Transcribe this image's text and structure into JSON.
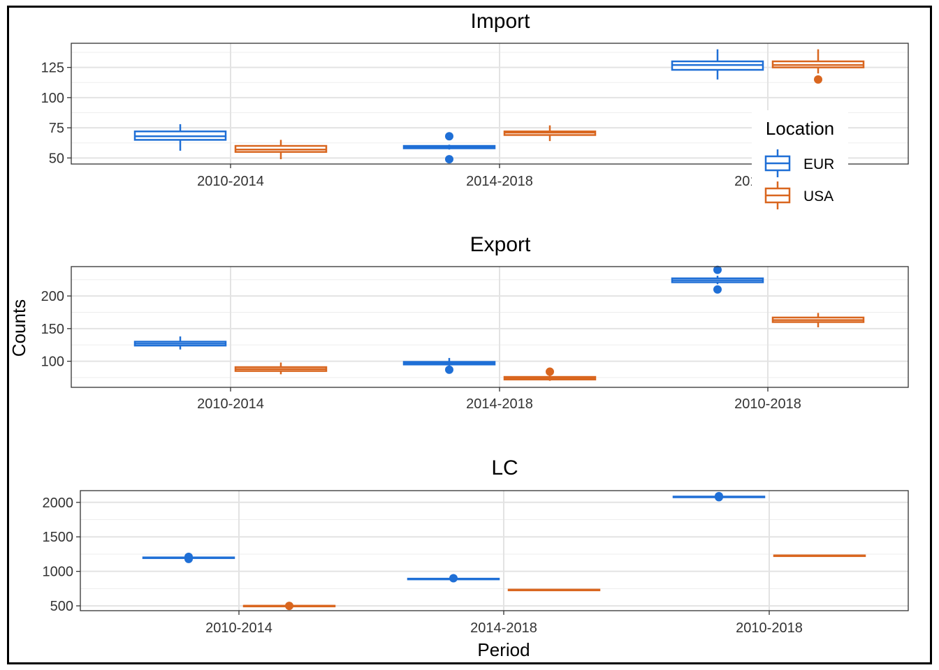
{
  "chart_data": {
    "type": "box",
    "ylabel": "Counts",
    "xlabel": "Period",
    "legend": {
      "title": "Location",
      "placement": "right",
      "entries": [
        {
          "name": "EUR",
          "color": "#1f6fd6"
        },
        {
          "name": "USA",
          "color": "#d9661f"
        }
      ]
    },
    "grid": true,
    "categories": [
      "2010-2014",
      "2014-2018",
      "2010-2018"
    ],
    "panels": [
      {
        "title": "Import",
        "ylim": [
          45,
          145
        ],
        "yticks": [
          50,
          75,
          100,
          125
        ],
        "series": [
          {
            "name": "EUR",
            "color": "#1f6fd6",
            "boxes": [
              {
                "min": 56,
                "q1": 65,
                "median": 68,
                "q3": 72,
                "max": 78,
                "outliers": []
              },
              {
                "min": 57,
                "q1": 58,
                "median": 59,
                "q3": 60,
                "max": 61,
                "outliers": [
                  68,
                  49
                ]
              },
              {
                "min": 115,
                "q1": 123,
                "median": 127,
                "q3": 130,
                "max": 140,
                "outliers": []
              }
            ]
          },
          {
            "name": "USA",
            "color": "#d9661f",
            "boxes": [
              {
                "min": 49,
                "q1": 55,
                "median": 57,
                "q3": 60,
                "max": 65,
                "outliers": []
              },
              {
                "min": 64,
                "q1": 69,
                "median": 71,
                "q3": 72,
                "max": 77,
                "outliers": []
              },
              {
                "min": 120,
                "q1": 125,
                "median": 127,
                "q3": 130,
                "max": 140,
                "outliers": [
                  115
                ]
              }
            ]
          }
        ]
      },
      {
        "title": "Export",
        "ylim": [
          60,
          245
        ],
        "yticks": [
          100,
          150,
          200
        ],
        "series": [
          {
            "name": "EUR",
            "color": "#1f6fd6",
            "boxes": [
              {
                "min": 118,
                "q1": 124,
                "median": 127,
                "q3": 130,
                "max": 138,
                "outliers": []
              },
              {
                "min": 93,
                "q1": 95,
                "median": 97,
                "q3": 99,
                "max": 105,
                "outliers": [
                  87
                ]
              },
              {
                "min": 218,
                "q1": 221,
                "median": 224,
                "q3": 227,
                "max": 231,
                "outliers": [
                  240,
                  210
                ]
              }
            ]
          },
          {
            "name": "USA",
            "color": "#d9661f",
            "boxes": [
              {
                "min": 80,
                "q1": 85,
                "median": 88,
                "q3": 91,
                "max": 98,
                "outliers": []
              },
              {
                "min": 70,
                "q1": 72,
                "median": 74,
                "q3": 76,
                "max": 78,
                "outliers": [
                  84
                ]
              },
              {
                "min": 152,
                "q1": 160,
                "median": 163,
                "q3": 167,
                "max": 174,
                "outliers": []
              }
            ]
          }
        ]
      },
      {
        "title": "LC",
        "ylim": [
          430,
          2170
        ],
        "yticks": [
          500,
          1000,
          1500,
          2000
        ],
        "series": [
          {
            "name": "EUR",
            "color": "#1f6fd6",
            "boxes": [
              {
                "min": 1195,
                "q1": 1198,
                "median": 1200,
                "q3": 1202,
                "max": 1205,
                "outliers": [
                  1210,
                  1180
                ]
              },
              {
                "min": 888,
                "q1": 890,
                "median": 892,
                "q3": 894,
                "max": 896,
                "outliers": [
                  900
                ]
              },
              {
                "min": 2078,
                "q1": 2080,
                "median": 2082,
                "q3": 2084,
                "max": 2086,
                "outliers": [
                  2090,
                  2075
                ]
              }
            ]
          },
          {
            "name": "USA",
            "color": "#d9661f",
            "boxes": [
              {
                "min": 496,
                "q1": 498,
                "median": 500,
                "q3": 502,
                "max": 504,
                "outliers": [
                  500
                ]
              },
              {
                "min": 729,
                "q1": 731,
                "median": 733,
                "q3": 735,
                "max": 737,
                "outliers": []
              },
              {
                "min": 1225,
                "q1": 1227,
                "median": 1229,
                "q3": 1231,
                "max": 1233,
                "outliers": []
              }
            ]
          }
        ]
      }
    ]
  }
}
